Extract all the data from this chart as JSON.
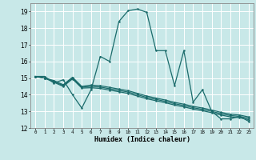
{
  "xlabel": "Humidex (Indice chaleur)",
  "bg_color": "#c8e8e8",
  "grid_color": "#ffffff",
  "line_color": "#1a6b6b",
  "xlim": [
    -0.5,
    23.5
  ],
  "ylim": [
    12,
    19.5
  ],
  "yticks": [
    12,
    13,
    14,
    15,
    16,
    17,
    18,
    19
  ],
  "xticks": [
    0,
    1,
    2,
    3,
    4,
    5,
    6,
    7,
    8,
    9,
    10,
    11,
    12,
    13,
    14,
    15,
    16,
    17,
    18,
    19,
    20,
    21,
    22,
    23
  ],
  "series1_x": [
    0,
    1,
    2,
    3,
    4,
    5,
    6,
    7,
    8,
    9,
    10,
    11,
    12,
    13,
    14,
    15,
    16,
    17,
    18,
    19,
    20,
    21,
    22,
    23
  ],
  "series1_y": [
    15.1,
    15.1,
    14.7,
    14.9,
    14.0,
    13.2,
    14.3,
    16.3,
    16.0,
    18.4,
    19.05,
    19.15,
    18.95,
    16.65,
    16.65,
    14.55,
    16.65,
    13.55,
    14.3,
    13.0,
    12.55,
    12.55,
    12.7,
    12.4
  ],
  "series2_x": [
    0,
    1,
    2,
    3,
    4,
    5,
    6,
    7,
    8,
    9,
    10,
    11,
    12,
    13,
    14,
    15,
    16,
    17,
    18,
    19,
    20,
    21,
    22,
    23
  ],
  "series2_y": [
    15.1,
    15.0,
    14.75,
    14.5,
    14.95,
    14.4,
    14.42,
    14.38,
    14.28,
    14.18,
    14.08,
    13.92,
    13.76,
    13.64,
    13.52,
    13.38,
    13.27,
    13.14,
    13.04,
    12.92,
    12.78,
    12.67,
    12.62,
    12.5
  ],
  "series3_x": [
    0,
    1,
    2,
    3,
    4,
    5,
    6,
    7,
    8,
    9,
    10,
    11,
    12,
    13,
    14,
    15,
    16,
    17,
    18,
    19,
    20,
    21,
    22,
    23
  ],
  "series3_y": [
    15.1,
    15.0,
    14.8,
    14.55,
    15.0,
    14.45,
    14.5,
    14.46,
    14.36,
    14.26,
    14.16,
    14.0,
    13.84,
    13.72,
    13.6,
    13.46,
    13.35,
    13.22,
    13.12,
    13.0,
    12.86,
    12.75,
    12.7,
    12.58
  ],
  "series4_x": [
    0,
    1,
    2,
    3,
    4,
    5,
    6,
    7,
    8,
    9,
    10,
    11,
    12,
    13,
    14,
    15,
    16,
    17,
    18,
    19,
    20,
    21,
    22,
    23
  ],
  "series4_y": [
    15.1,
    15.0,
    14.85,
    14.6,
    15.05,
    14.5,
    14.58,
    14.54,
    14.44,
    14.34,
    14.24,
    14.08,
    13.92,
    13.8,
    13.68,
    13.54,
    13.43,
    13.3,
    13.2,
    13.08,
    12.94,
    12.83,
    12.78,
    12.66
  ]
}
